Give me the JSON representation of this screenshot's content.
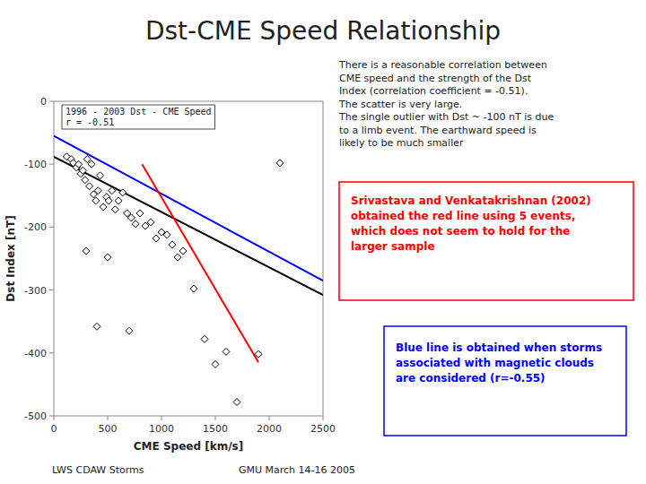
{
  "chart_data": {
    "type": "scatter",
    "title": "Dst-CME Speed Relationship",
    "x_label": "CME Speed [km/s]",
    "y_label": "Dst Index [nT]",
    "xlim": [
      0,
      2500
    ],
    "ylim": [
      -500,
      0
    ],
    "xticks": [
      0,
      500,
      1000,
      1500,
      2000,
      2500
    ],
    "yticks": [
      0,
      -100,
      -200,
      -300,
      -400,
      -500
    ],
    "grid": false,
    "series": [
      {
        "type": "scatter",
        "marker": "diamond",
        "color": "black",
        "x": [
          120,
          160,
          180,
          210,
          230,
          250,
          270,
          290,
          310,
          330,
          350,
          370,
          390,
          410,
          430,
          460,
          490,
          510,
          540,
          570,
          600,
          640,
          680,
          720,
          760,
          800,
          850,
          900,
          950,
          1000,
          1050,
          1100,
          1150,
          1200,
          1300,
          1400,
          1500,
          1600,
          1700,
          1900,
          2100,
          300,
          400,
          500,
          700
        ],
        "values": [
          -88,
          -92,
          -98,
          -105,
          -100,
          -115,
          -110,
          -125,
          -92,
          -135,
          -100,
          -148,
          -158,
          -142,
          -118,
          -168,
          -152,
          -158,
          -142,
          -172,
          -158,
          -145,
          -178,
          -185,
          -195,
          -178,
          -198,
          -192,
          -218,
          -208,
          -212,
          -228,
          -248,
          -238,
          -298,
          -378,
          -418,
          -398,
          -478,
          -402,
          -98,
          -238,
          -358,
          -248,
          -365
        ]
      },
      {
        "type": "line",
        "color": "black",
        "x": [
          0,
          2500
        ],
        "values": [
          -88,
          -308
        ]
      },
      {
        "type": "line",
        "color": "blue",
        "x": [
          0,
          2500
        ],
        "values": [
          -55,
          -285
        ]
      },
      {
        "type": "line",
        "color": "red",
        "x": [
          820,
          1900
        ],
        "values": [
          -100,
          -415
        ]
      }
    ],
    "annotations": [
      {
        "text": "1996 - 2003  Dst - CME Speed\nr = -0.51"
      },
      {
        "text": "There is a reasonable correlation between\nCME speed and the strength of the Dst\nIndex (correlation coefficient = -0.51).\nThe scatter is very large.\nThe single outlier with Dst ~ -100 nT is due\nto a limb event. The earthward speed is\nlikely to be much smaller"
      },
      {
        "text": "Srivastava and Venkatakrishnan (2002)\nobtained the red line using 5 events,\nwhich does not seem to hold for the\nlarger sample",
        "color": "red"
      },
      {
        "text": "Blue line is obtained when storms\nassociated with magnetic clouds\nare considered (r=-0.55)",
        "color": "blue"
      },
      {
        "text": "LWS CDAW Storms"
      },
      {
        "text": "GMU March 14-16 2005"
      }
    ]
  }
}
